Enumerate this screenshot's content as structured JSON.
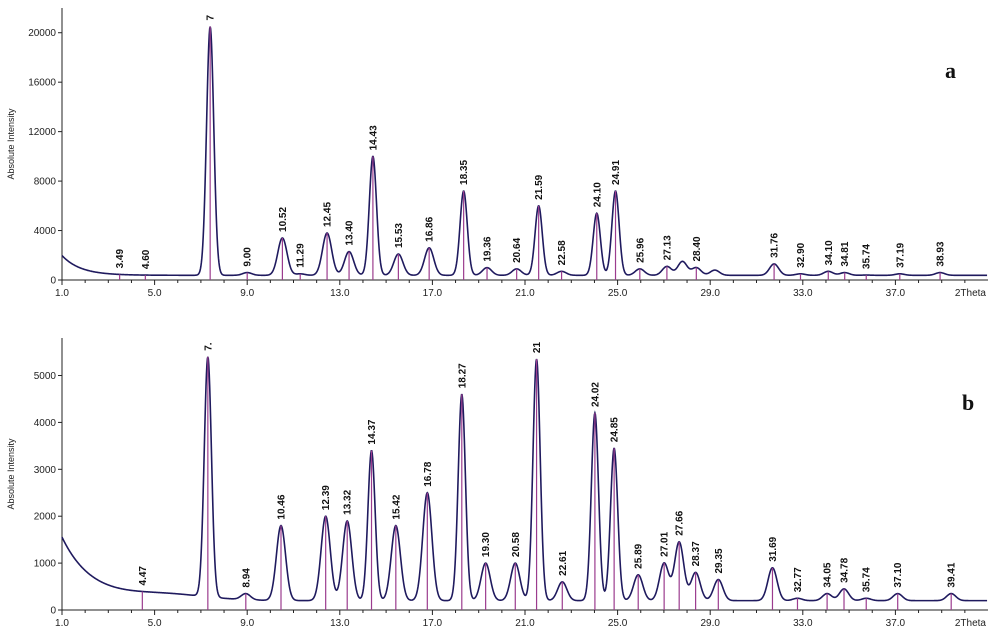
{
  "chart_data": [
    {
      "type": "line",
      "panel": "a",
      "ylabel": "Absolute Intensity",
      "xlabel_end": "2Theta",
      "xlim": [
        1.0,
        41.0
      ],
      "ylim": [
        0,
        22000
      ],
      "x_ticks": [
        "1.0",
        "5.0",
        "9.0",
        "13.0",
        "17.0",
        "21.0",
        "25.0",
        "29.0",
        "33.0",
        "37.0"
      ],
      "y_ticks": [
        "0",
        "4000",
        "8000",
        "12000",
        "16000",
        "20000"
      ],
      "y_tick_values": [
        0,
        4000,
        8000,
        12000,
        16000,
        20000
      ],
      "peaks": [
        {
          "x": 3.49,
          "y": 300,
          "label": "3.49"
        },
        {
          "x": 4.6,
          "y": 250,
          "label": "4.60"
        },
        {
          "x": 7.4,
          "y": 20500,
          "label": "7"
        },
        {
          "x": 9.0,
          "y": 600,
          "label": "9.00"
        },
        {
          "x": 10.52,
          "y": 3400,
          "label": "10.52"
        },
        {
          "x": 11.29,
          "y": 500,
          "label": "11.29"
        },
        {
          "x": 12.45,
          "y": 3800,
          "label": "12.45"
        },
        {
          "x": 13.4,
          "y": 2300,
          "label": "13.40"
        },
        {
          "x": 14.43,
          "y": 10000,
          "label": "14.43"
        },
        {
          "x": 15.53,
          "y": 2100,
          "label": "15.53"
        },
        {
          "x": 16.86,
          "y": 2600,
          "label": "16.86"
        },
        {
          "x": 18.35,
          "y": 7200,
          "label": "18.35"
        },
        {
          "x": 19.36,
          "y": 1000,
          "label": "19.36"
        },
        {
          "x": 20.64,
          "y": 900,
          "label": "20.64"
        },
        {
          "x": 21.59,
          "y": 6000,
          "label": "21.59"
        },
        {
          "x": 22.58,
          "y": 700,
          "label": "22.58"
        },
        {
          "x": 24.1,
          "y": 5400,
          "label": "24.10"
        },
        {
          "x": 24.91,
          "y": 7200,
          "label": "24.91"
        },
        {
          "x": 25.96,
          "y": 900,
          "label": "25.96"
        },
        {
          "x": 27.13,
          "y": 1100,
          "label": "27.13"
        },
        {
          "x": 28.4,
          "y": 1000,
          "label": "28.40"
        },
        {
          "x": 31.76,
          "y": 1300,
          "label": "31.76"
        },
        {
          "x": 32.9,
          "y": 500,
          "label": "32.90"
        },
        {
          "x": 34.1,
          "y": 700,
          "label": "34.10"
        },
        {
          "x": 34.81,
          "y": 600,
          "label": "34.81"
        },
        {
          "x": 35.74,
          "y": 400,
          "label": "35.74"
        },
        {
          "x": 37.19,
          "y": 500,
          "label": "37.19"
        },
        {
          "x": 38.93,
          "y": 600,
          "label": "38.93"
        }
      ],
      "extra_peaks": [
        {
          "x": 27.8,
          "y": 1500
        },
        {
          "x": 29.2,
          "y": 800
        }
      ]
    },
    {
      "type": "line",
      "panel": "b",
      "ylabel": "Absolute Intensity",
      "xlabel_end": "2Theta",
      "xlim": [
        1.0,
        41.0
      ],
      "ylim": [
        0,
        5800
      ],
      "x_ticks": [
        "1.0",
        "5.0",
        "9.0",
        "13.0",
        "17.0",
        "21.0",
        "25.0",
        "29.0",
        "33.0",
        "37.0"
      ],
      "y_ticks": [
        "0",
        "1000",
        "2000",
        "3000",
        "4000",
        "5000"
      ],
      "y_tick_values": [
        0,
        1000,
        2000,
        3000,
        4000,
        5000
      ],
      "peaks": [
        {
          "x": 4.47,
          "y": 250,
          "label": "4.47"
        },
        {
          "x": 7.3,
          "y": 5400,
          "label": "7."
        },
        {
          "x": 8.94,
          "y": 350,
          "label": "8.94"
        },
        {
          "x": 10.46,
          "y": 1800,
          "label": "10.46"
        },
        {
          "x": 12.39,
          "y": 2000,
          "label": "12.39"
        },
        {
          "x": 13.32,
          "y": 1900,
          "label": "13.32"
        },
        {
          "x": 14.37,
          "y": 3400,
          "label": "14.37"
        },
        {
          "x": 15.42,
          "y": 1800,
          "label": "15.42"
        },
        {
          "x": 16.78,
          "y": 2500,
          "label": "16.78"
        },
        {
          "x": 18.27,
          "y": 4600,
          "label": "18.27"
        },
        {
          "x": 19.3,
          "y": 1000,
          "label": "19.30"
        },
        {
          "x": 20.58,
          "y": 1000,
          "label": "20.58"
        },
        {
          "x": 21.5,
          "y": 5350,
          "label": "21"
        },
        {
          "x": 22.61,
          "y": 600,
          "label": "22.61"
        },
        {
          "x": 24.02,
          "y": 4200,
          "label": "24.02"
        },
        {
          "x": 24.85,
          "y": 3450,
          "label": "24.85"
        },
        {
          "x": 25.89,
          "y": 750,
          "label": "25.89"
        },
        {
          "x": 27.01,
          "y": 1000,
          "label": "27.01"
        },
        {
          "x": 27.66,
          "y": 1450,
          "label": "27.66"
        },
        {
          "x": 28.37,
          "y": 800,
          "label": "28.37"
        },
        {
          "x": 29.35,
          "y": 650,
          "label": "29.35"
        },
        {
          "x": 31.69,
          "y": 900,
          "label": "31.69"
        },
        {
          "x": 32.77,
          "y": 250,
          "label": "32.77"
        },
        {
          "x": 34.05,
          "y": 350,
          "label": "34.05"
        },
        {
          "x": 34.78,
          "y": 450,
          "label": "34.78"
        },
        {
          "x": 35.74,
          "y": 250,
          "label": "35.74"
        },
        {
          "x": 37.1,
          "y": 350,
          "label": "37.10"
        },
        {
          "x": 39.41,
          "y": 350,
          "label": "39.41"
        }
      ],
      "extra_peaks": []
    }
  ],
  "panel_letters": [
    "a",
    "b"
  ],
  "colors": {
    "trace": "#1f1a5e",
    "stick": "#9b3c8e",
    "axis": "#222222"
  }
}
